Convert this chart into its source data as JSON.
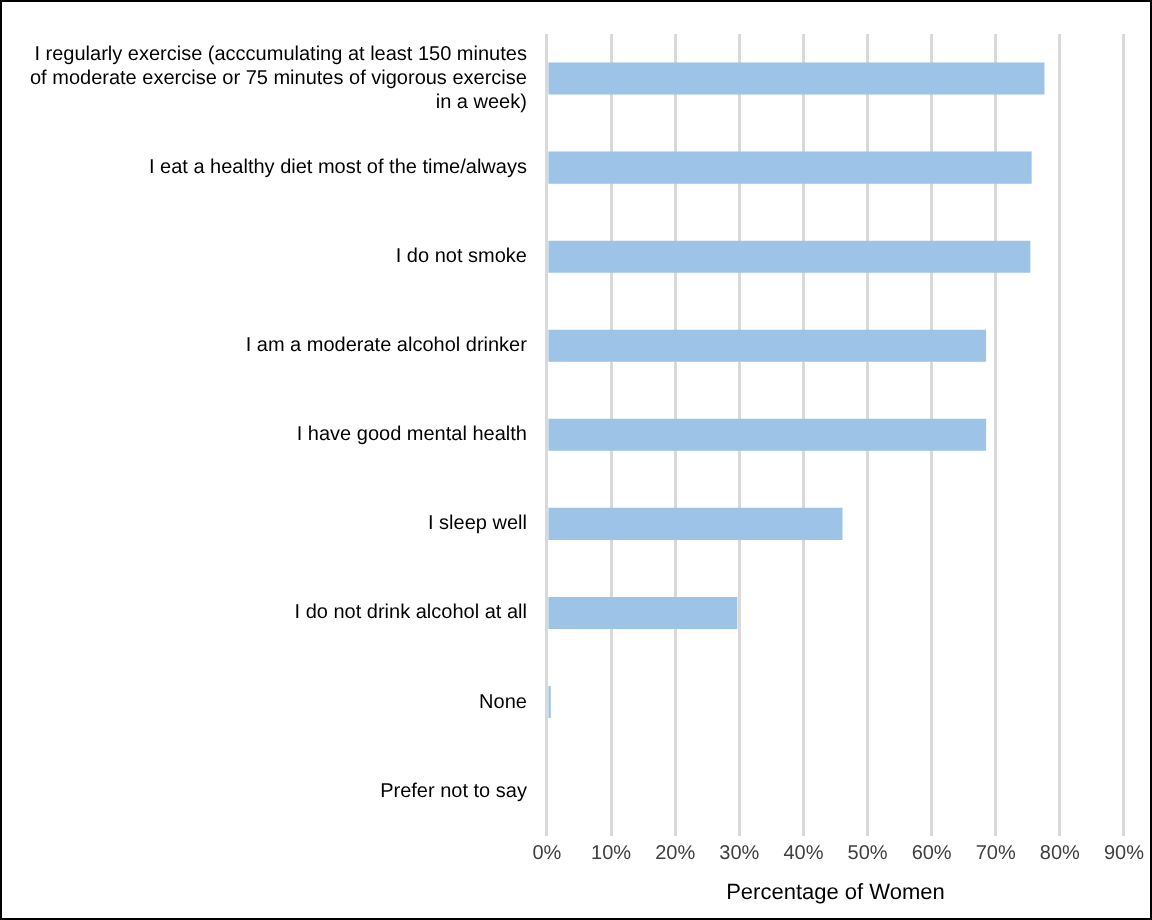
{
  "chart_data": {
    "type": "bar",
    "orientation": "horizontal",
    "xlabel": "Percentage of Women",
    "categories": [
      "I regularly exercise (acccumulating at least 150 minutes of moderate exercise or 75 minutes of vigorous exercise in a week)",
      "I eat a healthy diet most of the time/always",
      "I do not smoke",
      "I am a moderate alcohol drinker",
      "I have good mental health",
      "I sleep well",
      "I do not drink alcohol at all",
      "None",
      "Prefer not to say"
    ],
    "values": [
      77.6,
      75.6,
      75.4,
      68.5,
      68.5,
      46.1,
      29.7,
      0.6,
      0
    ],
    "color": "#9dc3e6",
    "xlim": [
      0,
      90
    ],
    "xticks": [
      {
        "value": 0,
        "label": "0%"
      },
      {
        "value": 10,
        "label": "10%"
      },
      {
        "value": 20,
        "label": "20%"
      },
      {
        "value": 30,
        "label": "30%"
      },
      {
        "value": 40,
        "label": "40%"
      },
      {
        "value": 50,
        "label": "50%"
      },
      {
        "value": 60,
        "label": "60%"
      },
      {
        "value": 70,
        "label": "70%"
      },
      {
        "value": 80,
        "label": "80%"
      },
      {
        "value": 90,
        "label": "90%"
      }
    ],
    "grid": "x",
    "legend": false
  }
}
